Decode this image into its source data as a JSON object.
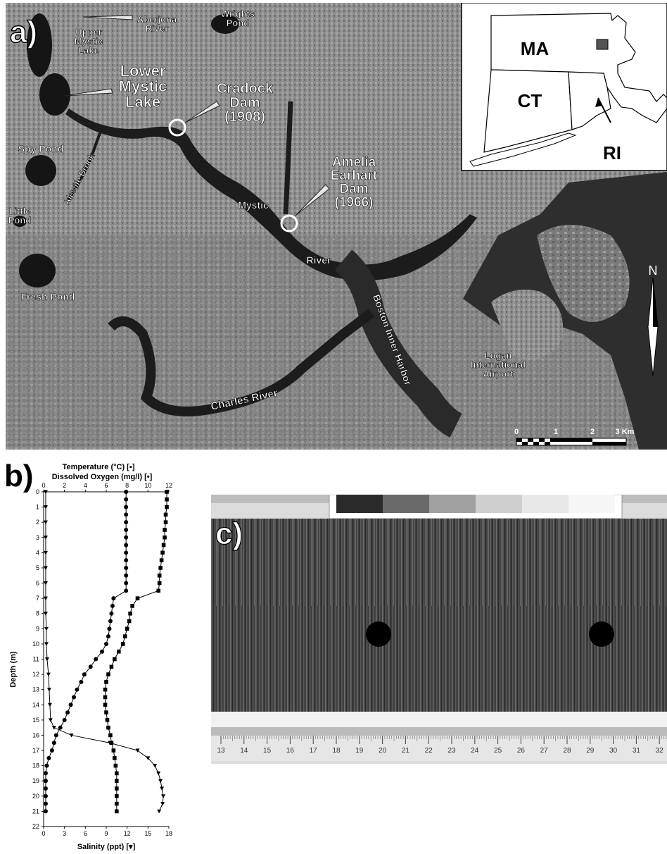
{
  "map": {
    "panel_label": "a)",
    "place_labels": {
      "aberjona": "Aberjona\nRiver",
      "wrights": "Wrights\nPond",
      "upper_mystic": "Upper\nMystic\nLake",
      "lower_mystic": "Lower\nMystic\nLake",
      "cradock": "Cradock\nDam\n(1908)",
      "amelia": "Amelia\nEarhart\nDam\n(1966)",
      "spy": "Spy Pond",
      "alewife": "Alewife Brook",
      "little": "Little\nPond",
      "fresh": "Fresh Pond",
      "mystic": "Mystic",
      "river": "River",
      "boston_harbor": "Boston Inner Harbor",
      "charles": "Charles River",
      "logan": "Logan\nInternational\nAirport"
    },
    "inset": {
      "ma": "MA",
      "ct": "CT",
      "ri": "RI"
    },
    "scale_ticks": [
      "0",
      "1",
      "2",
      "3 Km"
    ],
    "north": "N"
  },
  "profile": {
    "panel_label": "b)",
    "legend_temp": "Temperature (°C)  [▪]",
    "legend_do": "Dissolved Oxygen (mg/l)  [•]",
    "ylabel": "Depth (m)",
    "xlabel": "Salinity (ppt)  [▾]"
  },
  "core": {
    "panel_label": "c)",
    "ruler_ticks": [
      "13",
      "14",
      "15",
      "16",
      "17",
      "18",
      "19",
      "20",
      "21",
      "22",
      "23",
      "24",
      "25",
      "26",
      "27",
      "28",
      "29",
      "30",
      "31",
      "32"
    ]
  },
  "chart_data": {
    "type": "line",
    "ylabel": "Depth (m)",
    "ylim": [
      0,
      22
    ],
    "y_ticks": [
      0,
      1,
      2,
      3,
      4,
      5,
      6,
      7,
      8,
      9,
      10,
      11,
      12,
      13,
      14,
      15,
      16,
      17,
      18,
      19,
      20,
      21,
      22
    ],
    "top_axis": {
      "range": [
        0,
        12
      ],
      "ticks": [
        0,
        2,
        4,
        6,
        8,
        10,
        12
      ]
    },
    "bottom_axis": {
      "label": "Salinity (ppt)  [▾]",
      "range": [
        0,
        18
      ],
      "ticks": [
        0,
        3,
        6,
        9,
        12,
        15,
        18
      ]
    },
    "series": [
      {
        "name": "Temperature (°C)",
        "axis": "top",
        "depth": [
          0,
          0.5,
          1,
          1.5,
          2,
          2.5,
          3,
          3.5,
          4,
          4.5,
          5,
          5.5,
          6,
          6.5,
          7,
          7.5,
          8,
          8.5,
          9,
          9.5,
          10,
          10.5,
          11,
          11.5,
          12,
          12.5,
          13,
          13.5,
          14,
          14.5,
          15,
          15.5,
          16,
          16.5,
          17,
          17.5,
          18,
          18.5,
          19,
          19.5,
          20,
          20.5,
          21
        ],
        "values": [
          11.8,
          11.8,
          11.8,
          11.7,
          11.7,
          11.6,
          11.6,
          11.5,
          11.4,
          11.3,
          11.2,
          11.1,
          11.1,
          11.0,
          9.0,
          8.5,
          8.3,
          8.2,
          8.0,
          7.8,
          7.6,
          7.2,
          6.8,
          6.5,
          6.2,
          6.0,
          5.9,
          5.9,
          5.9,
          6.0,
          6.1,
          6.2,
          6.4,
          6.5,
          6.7,
          6.8,
          6.9,
          7.0,
          7.0,
          7.0,
          7.0,
          7.0,
          7.0
        ],
        "color": "#000000"
      },
      {
        "name": "Dissolved Oxygen (mg/l)",
        "axis": "top",
        "depth": [
          0,
          0.5,
          1,
          1.5,
          2,
          2.5,
          3,
          3.5,
          4,
          4.5,
          5,
          5.5,
          6,
          6.5,
          7,
          7.5,
          8,
          8.5,
          9,
          9.5,
          10,
          10.5,
          11,
          11.5,
          12,
          12.5,
          13,
          13.5,
          14,
          14.5,
          15,
          15.5,
          16,
          16.5,
          17,
          17.5,
          18,
          18.5,
          19,
          19.5,
          20,
          20.5,
          21
        ],
        "values": [
          7.9,
          7.9,
          7.9,
          7.9,
          7.9,
          7.9,
          7.9,
          7.9,
          7.9,
          7.9,
          7.9,
          7.9,
          7.9,
          7.9,
          6.7,
          6.6,
          6.5,
          6.4,
          6.3,
          6.2,
          6.0,
          5.6,
          5.0,
          4.5,
          3.9,
          3.6,
          3.2,
          2.9,
          2.6,
          2.3,
          2.0,
          1.6,
          1.2,
          1.0,
          0.8,
          0.5,
          0.3,
          0.2,
          0.2,
          0.2,
          0.2,
          0.2,
          0.2
        ],
        "color": "#000000"
      },
      {
        "name": "Salinity (ppt)",
        "axis": "bottom",
        "depth": [
          0,
          1,
          2,
          3,
          4,
          5,
          6,
          7,
          8,
          9,
          10,
          11,
          12,
          13,
          14,
          15,
          15.5,
          16,
          16.5,
          17,
          17.5,
          18,
          18.5,
          19,
          19.5,
          20,
          20.5,
          21
        ],
        "values": [
          0.3,
          0.3,
          0.3,
          0.3,
          0.3,
          0.3,
          0.3,
          0.3,
          0.3,
          0.4,
          0.4,
          0.5,
          0.7,
          0.8,
          0.9,
          1.0,
          1.5,
          4.0,
          9.5,
          13.5,
          15.0,
          16.0,
          16.5,
          16.8,
          17.0,
          17.2,
          17.1,
          16.6
        ],
        "color": "#000000"
      }
    ]
  }
}
